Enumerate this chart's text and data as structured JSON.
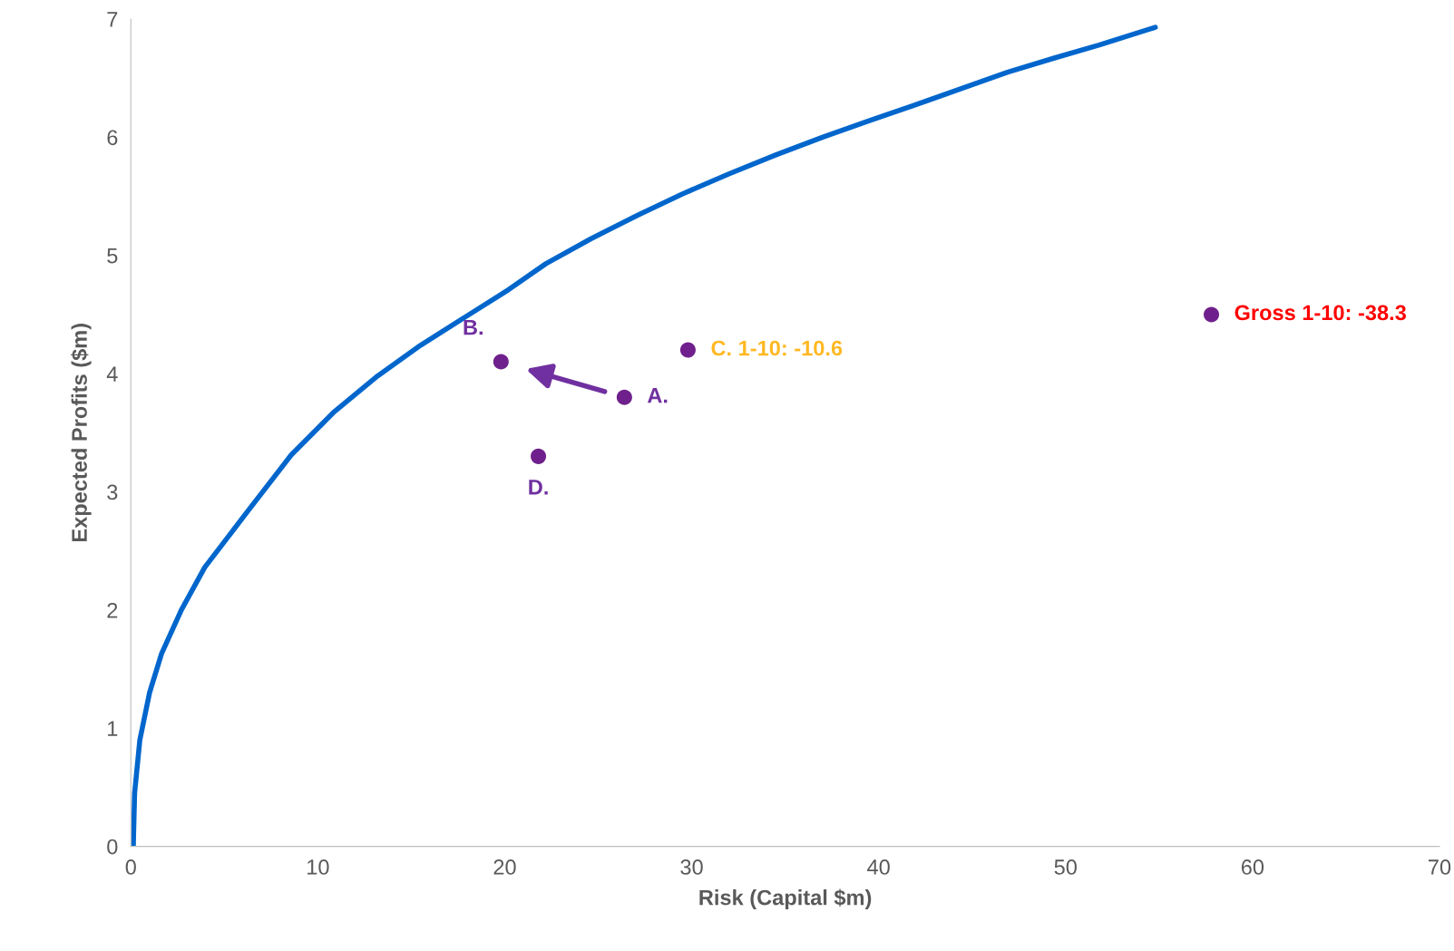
{
  "chart_data": {
    "type": "line",
    "xlabel": "Risk (Capital $m)",
    "ylabel": "Expected Profits ($m)",
    "xlim": [
      0,
      70
    ],
    "ylim": [
      0,
      7
    ],
    "xticks": [
      0,
      10,
      20,
      30,
      40,
      50,
      60,
      70
    ],
    "yticks": [
      0,
      1,
      2,
      3,
      4,
      5,
      6,
      7
    ],
    "grid": false,
    "legend": false,
    "series": [
      {
        "color": "#0066cc",
        "marker": "none",
        "x": [
          0.13,
          0.2,
          0.48,
          1.0,
          1.64,
          2.7,
          3.95,
          6.27,
          8.57,
          10.9,
          13.2,
          15.5,
          17.9,
          20.2,
          22.2,
          24.6,
          27.1,
          29.5,
          32.0,
          34.5,
          37.0,
          39.5,
          41.9,
          44.4,
          46.9,
          49.4,
          51.8,
          54.8
        ],
        "values": [
          0,
          0.45,
          0.9,
          1.3,
          1.63,
          2.0,
          2.36,
          2.84,
          3.31,
          3.68,
          3.98,
          4.24,
          4.48,
          4.71,
          4.93,
          5.14,
          5.34,
          5.52,
          5.69,
          5.85,
          6.0,
          6.14,
          6.27,
          6.41,
          6.55,
          6.67,
          6.78,
          6.93
        ]
      },
      {
        "type": "scatter",
        "color": "#70208c",
        "marker": "circle",
        "x": [
          19.8,
          26.4,
          21.8,
          29.8,
          57.8
        ],
        "values": [
          4.1,
          3.8,
          3.3,
          4.2,
          4.5
        ]
      }
    ],
    "annotations": [
      {
        "text": "B.",
        "x": 19.8,
        "y": 4.1
      },
      {
        "text": "A.",
        "x": 26.4,
        "y": 3.8
      },
      {
        "text": "D.",
        "x": 21.8,
        "y": 3.3
      },
      {
        "text": "C. 1-10: -10.6",
        "x": 29.8,
        "y": 4.2
      },
      {
        "text": "Gross 1-10: -38.3",
        "x": 57.8,
        "y": 4.5
      }
    ]
  }
}
